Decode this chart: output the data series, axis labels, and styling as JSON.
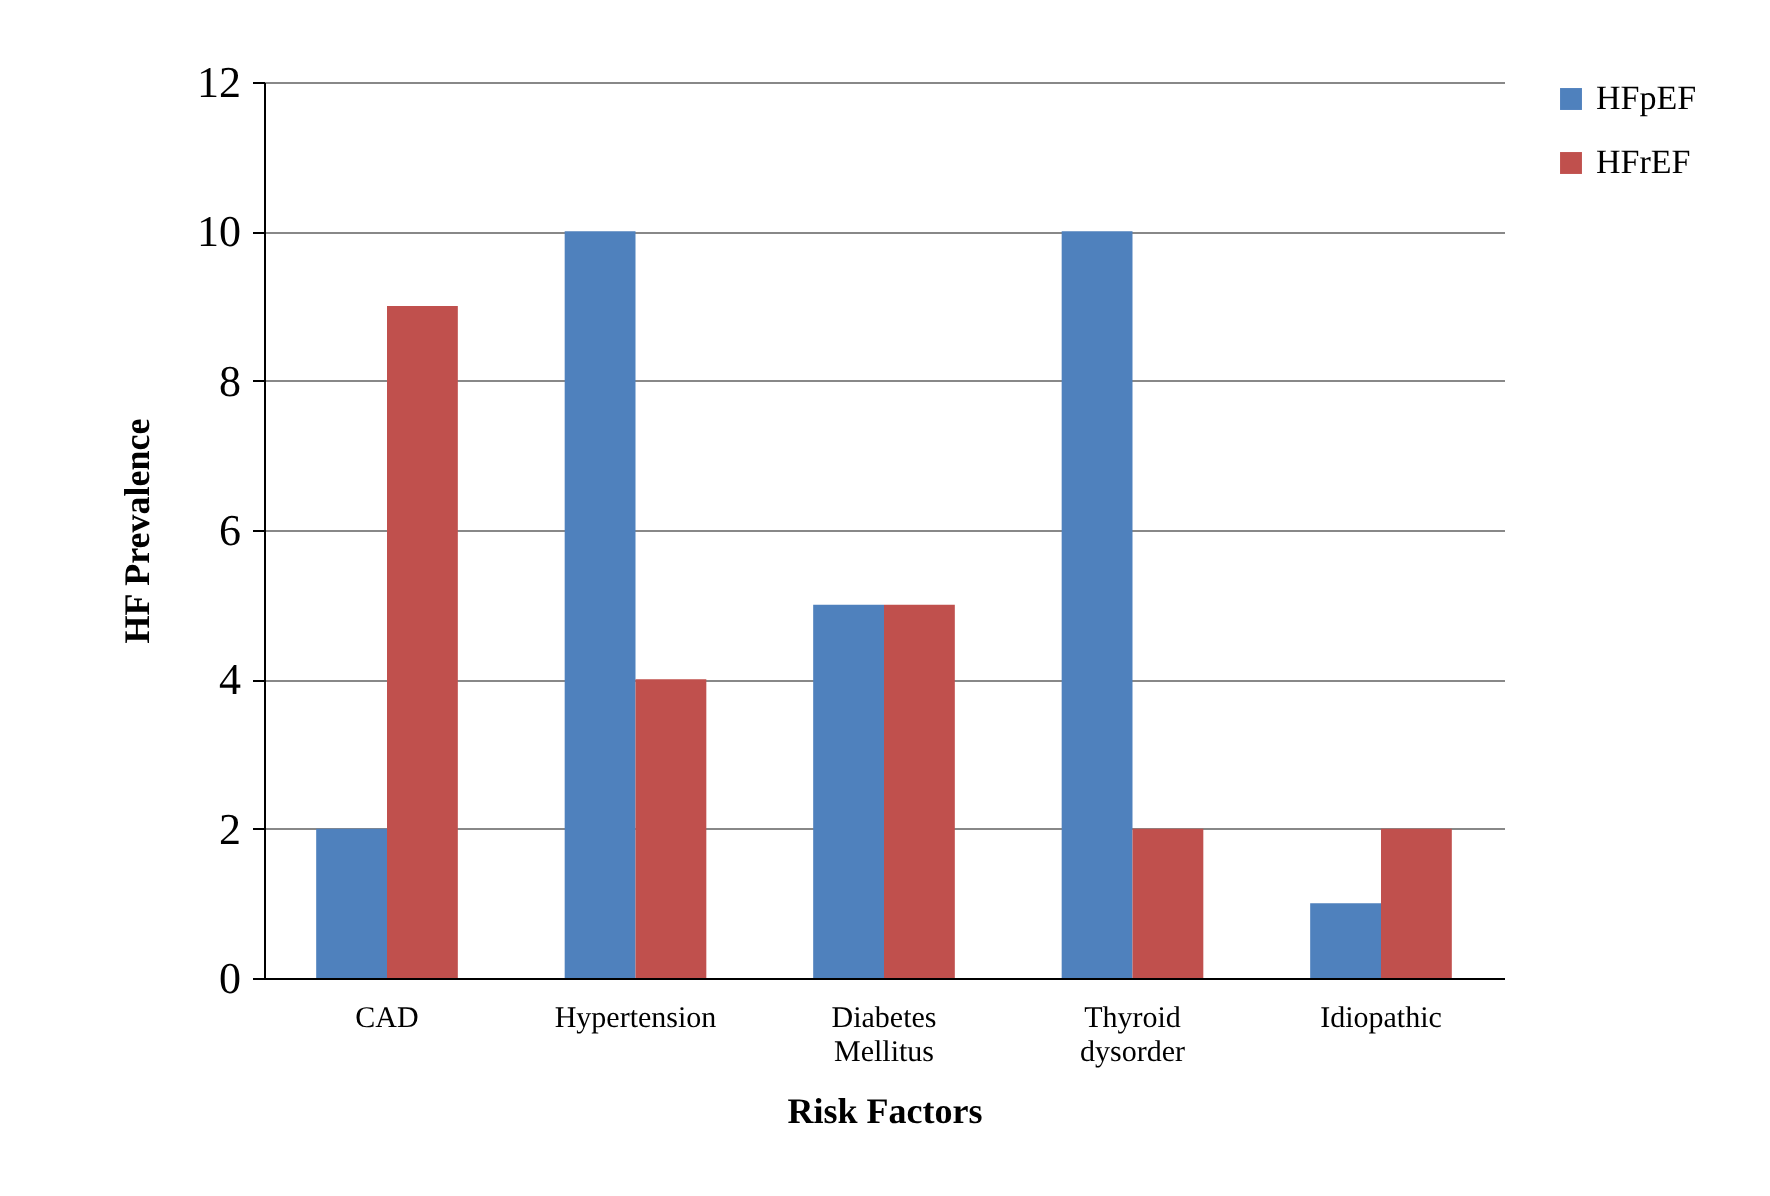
{
  "chart_data": {
    "type": "bar",
    "xlabel": "Risk Factors",
    "ylabel": "HF Prevalence",
    "categories": [
      "CAD",
      "Hypertension",
      "Diabetes Mellitus",
      "Thyroid dysorder",
      "Idiopathic"
    ],
    "series": [
      {
        "name": "HFpEF",
        "color": "#4f81bd",
        "values": [
          2,
          10,
          5,
          10,
          1
        ]
      },
      {
        "name": "HFrEF",
        "color": "#c0504d",
        "values": [
          9,
          4,
          5,
          2,
          2
        ]
      }
    ],
    "ylim": [
      0,
      12
    ],
    "yticks": [
      0,
      2,
      4,
      6,
      8,
      10,
      12
    ],
    "grid": "y",
    "legend": "right"
  }
}
